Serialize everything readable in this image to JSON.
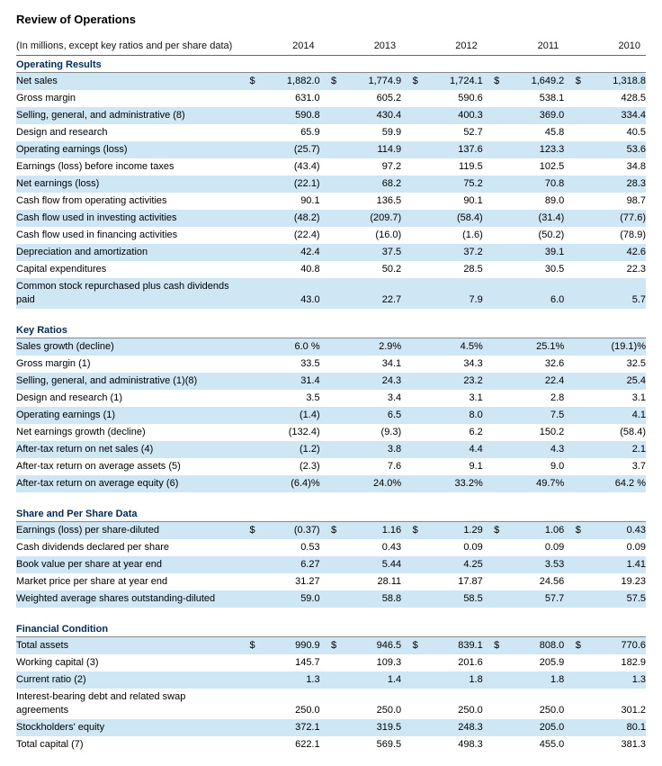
{
  "title": "Review of Operations",
  "subhead": "(In millions, except key ratios and per share data)",
  "years": [
    "2014",
    "2013",
    "2012",
    "2011",
    "2010"
  ],
  "colors": {
    "highlight_row_bg": "#cfe6f4",
    "section_header_text": "#002a5c",
    "rule": "#888888"
  },
  "sections": [
    {
      "title": "Operating Results",
      "rows": [
        {
          "hl": true,
          "dollar": true,
          "label": "Net sales",
          "vals": [
            "1,882.0",
            "1,774.9",
            "1,724.1",
            "1,649.2",
            "1,318.8"
          ]
        },
        {
          "hl": false,
          "label": "Gross margin",
          "vals": [
            "631.0",
            "605.2",
            "590.6",
            "538.1",
            "428.5"
          ]
        },
        {
          "hl": true,
          "label": "Selling, general, and administrative (8)",
          "vals": [
            "590.8",
            "430.4",
            "400.3",
            "369.0",
            "334.4"
          ]
        },
        {
          "hl": false,
          "label": "Design and research",
          "vals": [
            "65.9",
            "59.9",
            "52.7",
            "45.8",
            "40.5"
          ]
        },
        {
          "hl": true,
          "label": "Operating earnings (loss)",
          "vals": [
            "(25.7)",
            "114.9",
            "137.6",
            "123.3",
            "53.6"
          ]
        },
        {
          "hl": false,
          "label": "Earnings (loss) before income taxes",
          "vals": [
            "(43.4)",
            "97.2",
            "119.5",
            "102.5",
            "34.8"
          ]
        },
        {
          "hl": true,
          "label": "Net earnings (loss)",
          "vals": [
            "(22.1)",
            "68.2",
            "75.2",
            "70.8",
            "28.3"
          ]
        },
        {
          "hl": false,
          "label": "Cash flow from operating activities",
          "vals": [
            "90.1",
            "136.5",
            "90.1",
            "89.0",
            "98.7"
          ]
        },
        {
          "hl": true,
          "label": "Cash flow used in investing activities",
          "vals": [
            "(48.2)",
            "(209.7)",
            "(58.4)",
            "(31.4)",
            "(77.6)"
          ]
        },
        {
          "hl": false,
          "label": "Cash flow used in financing activities",
          "vals": [
            "(22.4)",
            "(16.0)",
            "(1.6)",
            "(50.2)",
            "(78.9)"
          ]
        },
        {
          "hl": true,
          "label": "Depreciation and amortization",
          "vals": [
            "42.4",
            "37.5",
            "37.2",
            "39.1",
            "42.6"
          ]
        },
        {
          "hl": false,
          "label": "Capital expenditures",
          "vals": [
            "40.8",
            "50.2",
            "28.5",
            "30.5",
            "22.3"
          ]
        },
        {
          "hl": true,
          "label": "Common stock repurchased plus cash dividends paid",
          "vals": [
            "43.0",
            "22.7",
            "7.9",
            "6.0",
            "5.7"
          ]
        }
      ]
    },
    {
      "title": "Key Ratios",
      "rows": [
        {
          "hl": true,
          "label": "Sales growth (decline)",
          "vals": [
            "6.0 %",
            "2.9%",
            "4.5%",
            "25.1%",
            "(19.1)%"
          ]
        },
        {
          "hl": false,
          "label": "Gross margin (1)",
          "vals": [
            "33.5",
            "34.1",
            "34.3",
            "32.6",
            "32.5"
          ]
        },
        {
          "hl": true,
          "label": "Selling, general, and administrative (1)(8)",
          "vals": [
            "31.4",
            "24.3",
            "23.2",
            "22.4",
            "25.4"
          ]
        },
        {
          "hl": false,
          "label": "Design and research (1)",
          "vals": [
            "3.5",
            "3.4",
            "3.1",
            "2.8",
            "3.1"
          ]
        },
        {
          "hl": true,
          "label": "Operating earnings (1)",
          "vals": [
            "(1.4)",
            "6.5",
            "8.0",
            "7.5",
            "4.1"
          ]
        },
        {
          "hl": false,
          "label": "Net earnings growth (decline)",
          "vals": [
            "(132.4)",
            "(9.3)",
            "6.2",
            "150.2",
            "(58.4)"
          ]
        },
        {
          "hl": true,
          "label": "After-tax return on net sales (4)",
          "vals": [
            "(1.2)",
            "3.8",
            "4.4",
            "4.3",
            "2.1"
          ]
        },
        {
          "hl": false,
          "label": "After-tax return on average assets (5)",
          "vals": [
            "(2.3)",
            "7.6",
            "9.1",
            "9.0",
            "3.7"
          ]
        },
        {
          "hl": true,
          "label": "After-tax return on average equity (6)",
          "vals": [
            "(6.4)%",
            "24.0%",
            "33.2%",
            "49.7%",
            "64.2 %"
          ]
        }
      ]
    },
    {
      "title": "Share and Per Share Data",
      "rows": [
        {
          "hl": true,
          "dollar": true,
          "label": "Earnings (loss) per share-diluted",
          "vals": [
            "(0.37)",
            "1.16",
            "1.29",
            "1.06",
            "0.43"
          ]
        },
        {
          "hl": false,
          "label": "Cash dividends declared per share",
          "vals": [
            "0.53",
            "0.43",
            "0.09",
            "0.09",
            "0.09"
          ]
        },
        {
          "hl": true,
          "label": "Book value per share at year end",
          "vals": [
            "6.27",
            "5.44",
            "4.25",
            "3.53",
            "1.41"
          ]
        },
        {
          "hl": false,
          "label": "Market price per share at year end",
          "vals": [
            "31.27",
            "28.11",
            "17.87",
            "24.56",
            "19.23"
          ]
        },
        {
          "hl": true,
          "label": "Weighted average shares outstanding-diluted",
          "vals": [
            "59.0",
            "58.8",
            "58.5",
            "57.7",
            "57.5"
          ]
        }
      ]
    },
    {
      "title": "Financial Condition",
      "rows": [
        {
          "hl": true,
          "dollar": true,
          "label": "Total assets",
          "vals": [
            "990.9",
            "946.5",
            "839.1",
            "808.0",
            "770.6"
          ]
        },
        {
          "hl": false,
          "label": "Working capital (3)",
          "vals": [
            "145.7",
            "109.3",
            "201.6",
            "205.9",
            "182.9"
          ]
        },
        {
          "hl": true,
          "label": "Current ratio (2)",
          "vals": [
            "1.3",
            "1.4",
            "1.8",
            "1.8",
            "1.3"
          ]
        },
        {
          "hl": false,
          "label": "Interest-bearing debt and related swap agreements",
          "vals": [
            "250.0",
            "250.0",
            "250.0",
            "250.0",
            "301.2"
          ]
        },
        {
          "hl": true,
          "label": "Stockholders' equity",
          "vals": [
            "372.1",
            "319.5",
            "248.3",
            "205.0",
            "80.1"
          ]
        },
        {
          "hl": false,
          "label": "Total capital (7)",
          "vals": [
            "622.1",
            "569.5",
            "498.3",
            "455.0",
            "381.3"
          ]
        }
      ]
    }
  ]
}
